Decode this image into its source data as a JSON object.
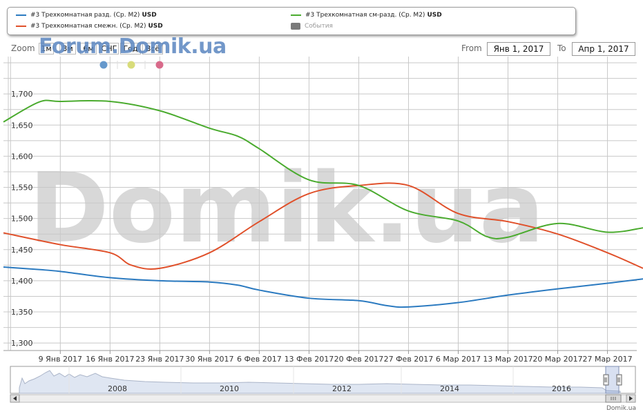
{
  "legend": {
    "items": [
      {
        "label": "#3 Трехкомнатная разд. (Ср. М2)",
        "unit": "USD",
        "color": "#2b7ac0"
      },
      {
        "label": "#3 Трехкомнатная смежн. (Ср. М2)",
        "unit": "USD",
        "color": "#e0502a"
      },
      {
        "label": "#3 Трехкомнатная см-разд. (Ср. М2)",
        "unit": "USD",
        "color": "#4aab2e"
      }
    ],
    "events_label": "События"
  },
  "zoom": {
    "label": "Zoom",
    "buttons": [
      "1м",
      "3м",
      "6м",
      "СНГ",
      "Год",
      "Всё"
    ]
  },
  "range": {
    "from_label": "From",
    "from_value": "Янв 1, 2017",
    "to_label": "To",
    "to_value": "Апр 1, 2017"
  },
  "logo": "Forum.Domik.ua",
  "watermark": "Domik.ua",
  "copyright": "Domik.ua",
  "event_markers": [
    {
      "color": "#6699cc"
    },
    {
      "color": "#d8dc7a"
    },
    {
      "color": "#d86a8a"
    }
  ],
  "chart_data": {
    "type": "line",
    "x_tick_labels": [
      "9 Янв 2017",
      "16 Янв 2017",
      "23 Янв 2017",
      "30 Янв 2017",
      "6 Фев 2017",
      "13 Фев 2017",
      "20 Фев 2017",
      "27 Фев 2017",
      "6 Мар 2017",
      "13 Мар 2017",
      "20 Мар 2017",
      "27 Мар 2017"
    ],
    "y_ticks": [
      1300,
      1350,
      1400,
      1450,
      1500,
      1550,
      1600,
      1650,
      1700
    ],
    "ylim": [
      1288,
      1760
    ],
    "grid": true,
    "series": [
      {
        "name": "#3 Трехкомнатная разд. (Ср. М2)",
        "color": "#2b7ac0",
        "x": [
          "2017-01-01",
          "2017-01-06",
          "2017-01-09",
          "2017-01-16",
          "2017-01-23",
          "2017-01-30",
          "2017-02-03",
          "2017-02-06",
          "2017-02-13",
          "2017-02-20",
          "2017-02-24",
          "2017-02-27",
          "2017-03-06",
          "2017-03-13",
          "2017-03-20",
          "2017-03-27",
          "2017-04-01"
        ],
        "y": [
          1422,
          1418,
          1415,
          1405,
          1400,
          1398,
          1393,
          1385,
          1372,
          1368,
          1360,
          1358,
          1365,
          1377,
          1387,
          1396,
          1403
        ]
      },
      {
        "name": "#3 Трехкомнатная смежн. (Ср. М2)",
        "color": "#e0502a",
        "x": [
          "2017-01-01",
          "2017-01-09",
          "2017-01-16",
          "2017-01-19",
          "2017-01-23",
          "2017-01-30",
          "2017-02-06",
          "2017-02-13",
          "2017-02-20",
          "2017-02-27",
          "2017-03-06",
          "2017-03-13",
          "2017-03-20",
          "2017-03-27",
          "2017-04-01"
        ],
        "y": [
          1477,
          1458,
          1445,
          1425,
          1420,
          1445,
          1495,
          1540,
          1553,
          1553,
          1508,
          1495,
          1475,
          1445,
          1420
        ]
      },
      {
        "name": "#3 Трехкомнатная см-разд. (Ср. М2)",
        "color": "#4aab2e",
        "x": [
          "2017-01-01",
          "2017-01-06",
          "2017-01-09",
          "2017-01-16",
          "2017-01-23",
          "2017-01-30",
          "2017-02-03",
          "2017-02-06",
          "2017-02-13",
          "2017-02-20",
          "2017-02-27",
          "2017-03-06",
          "2017-03-10",
          "2017-03-13",
          "2017-03-20",
          "2017-03-27",
          "2017-04-01"
        ],
        "y": [
          1655,
          1687,
          1688,
          1688,
          1673,
          1645,
          1632,
          1612,
          1562,
          1553,
          1512,
          1496,
          1471,
          1470,
          1492,
          1478,
          1485
        ]
      }
    ],
    "navigator": {
      "x_tick_labels": [
        "2008",
        "2010",
        "2012",
        "2014",
        "2016"
      ]
    }
  }
}
